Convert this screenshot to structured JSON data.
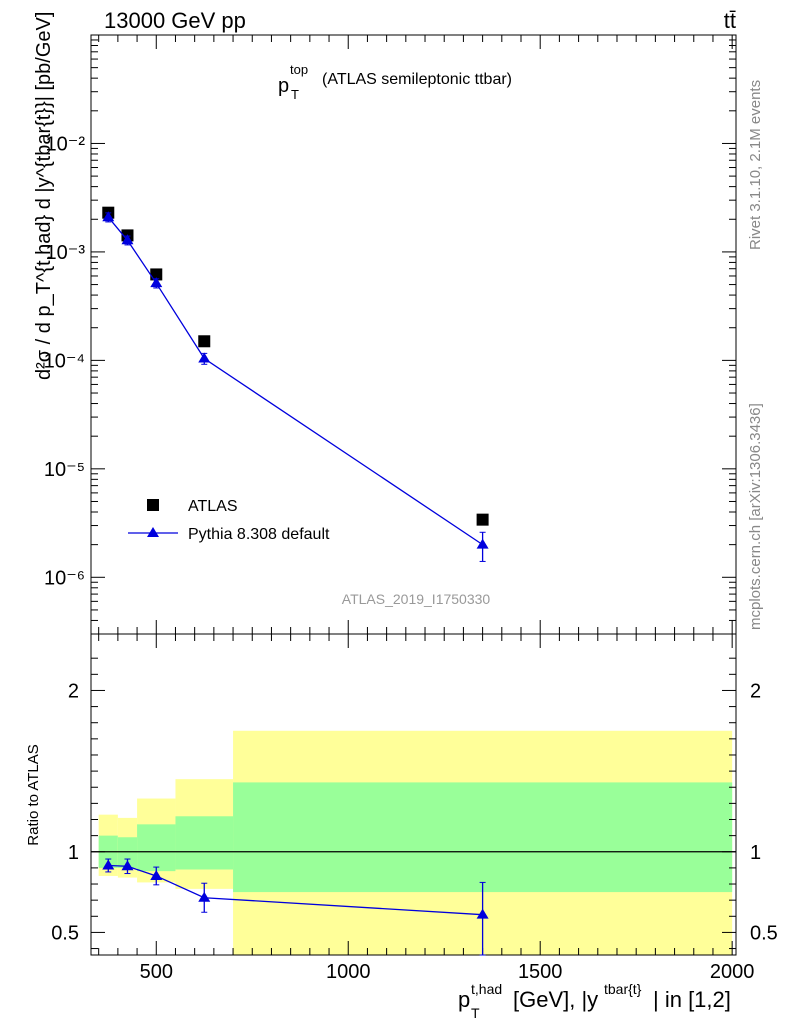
{
  "header": {
    "energy_label": "13000 GeV pp",
    "process_label": "tt̄"
  },
  "side_labels": {
    "rivet": "Rivet 3.1.10,  2.1M events",
    "mcplots": "mcplots.cern.ch [arXiv:1306.3436]"
  },
  "chart_data": [
    {
      "type": "scatter",
      "panel": "main",
      "title": "p_T^top (ATLAS semileptonic ttbar)",
      "title_main": "p",
      "title_sub": "T",
      "title_sup": "top",
      "title_rest": "(ATLAS semileptonic ttbar)",
      "ylabel": "d²σ / d p_T^{t,had} d |y^{tbar{t}}| [pb/GeV]",
      "yscale": "log",
      "ylim": [
        3e-07,
        0.1
      ],
      "xlim": [
        330,
        2010
      ],
      "y_tick_labels": [
        "10⁻⁶",
        "10⁻⁵",
        "10⁻⁴",
        "10⁻³",
        "10⁻²"
      ],
      "watermark": "ATLAS_2019_I1750330",
      "legend": {
        "position": "bottom-left",
        "entries": [
          "ATLAS",
          "Pythia 8.308 default"
        ]
      },
      "series": [
        {
          "name": "ATLAS",
          "marker": "square",
          "color": "#000000",
          "x": [
            375,
            425,
            500,
            625,
            1350
          ],
          "y": [
            0.0023,
            0.00142,
            0.00062,
            0.00015,
            3.4e-06
          ]
        },
        {
          "name": "Pythia 8.308 default",
          "marker": "triangle",
          "color": "#0000dd",
          "x": [
            375,
            425,
            500,
            625,
            1350
          ],
          "y": [
            0.00209,
            0.00128,
            0.000515,
            0.000104,
            2e-06
          ],
          "err_lo": [
            0.0002,
            0.00012,
            5e-05,
            1.2e-05,
            6e-07
          ],
          "err_hi": [
            0.0002,
            0.00012,
            5e-05,
            1.2e-05,
            6e-07
          ]
        }
      ]
    },
    {
      "type": "scatter",
      "panel": "ratio",
      "ylabel": "Ratio to ATLAS",
      "xlabel": "p_T^{t,had} [GeV], |y^{tbar{t}}| in [1,2]",
      "xlabel_pre": "p",
      "xlabel_sub": "T",
      "xlabel_sup": "t,had",
      "xlabel_mid": "[GeV], |y",
      "xlabel_sup2": "tbar{t}",
      "xlabel_post": "| in [1,2]",
      "ylim": [
        0.36,
        2.35
      ],
      "xlim": [
        330,
        2010
      ],
      "x_tick_labels": [
        "500",
        "1000",
        "1500",
        "2000"
      ],
      "y_tick_labels": [
        "0.5",
        "1",
        "2"
      ],
      "bands": {
        "bins": [
          [
            350,
            400
          ],
          [
            400,
            450
          ],
          [
            450,
            550
          ],
          [
            550,
            700
          ],
          [
            700,
            2000
          ]
        ],
        "yellow_lo": [
          0.85,
          0.84,
          0.81,
          0.77,
          0.36
        ],
        "yellow_hi": [
          1.23,
          1.21,
          1.33,
          1.45,
          1.75
        ],
        "green_lo": [
          0.9,
          0.9,
          0.88,
          0.89,
          0.75
        ],
        "green_hi": [
          1.1,
          1.09,
          1.17,
          1.22,
          1.43
        ]
      },
      "series": [
        {
          "name": "Pythia 8.308 default",
          "color": "#0000dd",
          "x": [
            375,
            425,
            500,
            625,
            1350
          ],
          "y": [
            0.915,
            0.91,
            0.85,
            0.715,
            0.61
          ],
          "err_lo": [
            0.04,
            0.045,
            0.055,
            0.09,
            0.26
          ],
          "err_hi": [
            0.04,
            0.045,
            0.055,
            0.09,
            0.2
          ]
        }
      ]
    }
  ]
}
